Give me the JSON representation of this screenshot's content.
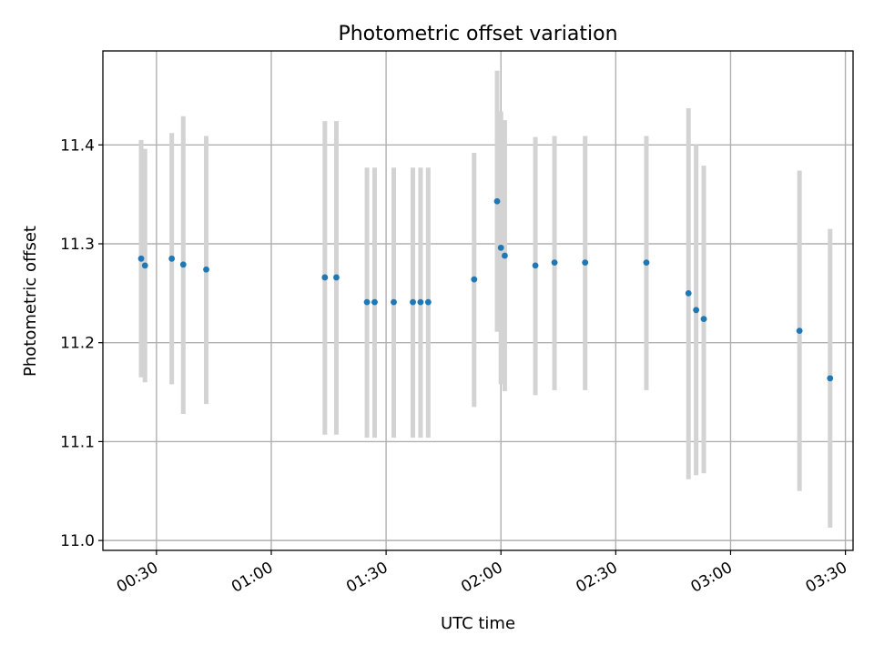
{
  "chart_data": {
    "type": "scatter",
    "title": "Photometric offset variation",
    "xlabel": "UTC time",
    "ylabel": "Photometric offset",
    "x_ticks": [
      "00:30",
      "01:00",
      "01:30",
      "02:00",
      "02:30",
      "03:00",
      "03:30"
    ],
    "y_ticks": [
      "11.0",
      "11.1",
      "11.2",
      "11.3",
      "11.4"
    ],
    "xlim": [
      "00:16",
      "03:32"
    ],
    "ylim": [
      10.99,
      11.495
    ],
    "grid": true,
    "marker_color": "#1f77b4",
    "errorbar_color": "#d3d3d3",
    "points": [
      {
        "x": "00:26",
        "y": 11.285,
        "lo": 11.165,
        "hi": 11.405
      },
      {
        "x": "00:27",
        "y": 11.278,
        "lo": 11.16,
        "hi": 11.396
      },
      {
        "x": "00:34",
        "y": 11.285,
        "lo": 11.158,
        "hi": 11.412
      },
      {
        "x": "00:37",
        "y": 11.279,
        "lo": 11.128,
        "hi": 11.429
      },
      {
        "x": "00:43",
        "y": 11.274,
        "lo": 11.138,
        "hi": 11.409
      },
      {
        "x": "01:14",
        "y": 11.266,
        "lo": 11.107,
        "hi": 11.424
      },
      {
        "x": "01:17",
        "y": 11.266,
        "lo": 11.107,
        "hi": 11.424
      },
      {
        "x": "01:25",
        "y": 11.241,
        "lo": 11.104,
        "hi": 11.377
      },
      {
        "x": "01:27",
        "y": 11.241,
        "lo": 11.104,
        "hi": 11.377
      },
      {
        "x": "01:32",
        "y": 11.241,
        "lo": 11.104,
        "hi": 11.377
      },
      {
        "x": "01:37",
        "y": 11.241,
        "lo": 11.104,
        "hi": 11.377
      },
      {
        "x": "01:39",
        "y": 11.241,
        "lo": 11.104,
        "hi": 11.377
      },
      {
        "x": "01:41",
        "y": 11.241,
        "lo": 11.104,
        "hi": 11.377
      },
      {
        "x": "01:53",
        "y": 11.264,
        "lo": 11.135,
        "hi": 11.392
      },
      {
        "x": "01:59",
        "y": 11.343,
        "lo": 11.211,
        "hi": 11.475
      },
      {
        "x": "02:00",
        "y": 11.296,
        "lo": 11.158,
        "hi": 11.434
      },
      {
        "x": "02:01",
        "y": 11.288,
        "lo": 11.151,
        "hi": 11.425
      },
      {
        "x": "02:09",
        "y": 11.278,
        "lo": 11.147,
        "hi": 11.408
      },
      {
        "x": "02:14",
        "y": 11.281,
        "lo": 11.152,
        "hi": 11.409
      },
      {
        "x": "02:22",
        "y": 11.281,
        "lo": 11.152,
        "hi": 11.409
      },
      {
        "x": "02:38",
        "y": 11.281,
        "lo": 11.152,
        "hi": 11.409
      },
      {
        "x": "02:49",
        "y": 11.25,
        "lo": 11.062,
        "hi": 11.437
      },
      {
        "x": "02:51",
        "y": 11.233,
        "lo": 11.066,
        "hi": 11.4
      },
      {
        "x": "02:53",
        "y": 11.224,
        "lo": 11.068,
        "hi": 11.379
      },
      {
        "x": "03:18",
        "y": 11.212,
        "lo": 11.05,
        "hi": 11.374
      },
      {
        "x": "03:26",
        "y": 11.164,
        "lo": 11.013,
        "hi": 11.315
      }
    ]
  }
}
